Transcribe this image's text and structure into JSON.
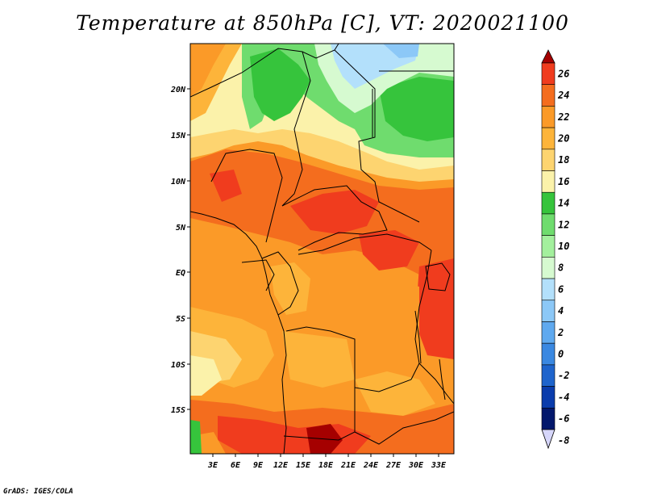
{
  "title": "Temperature at 850hPa [C], VT: 2020021100",
  "credit": "GrADS: IGES/COLA",
  "map": {
    "lat_labels": [
      "20N",
      "15N",
      "10N",
      "5N",
      "EQ",
      "5S",
      "10S",
      "15S"
    ],
    "lon_labels": [
      "3E",
      "6E",
      "9E",
      "12E",
      "15E",
      "18E",
      "21E",
      "24E",
      "27E",
      "30E",
      "33E"
    ]
  },
  "colorbar": {
    "labels": [
      "26",
      "24",
      "22",
      "20",
      "18",
      "16",
      "14",
      "12",
      "10",
      "8",
      "6",
      "4",
      "2",
      "0",
      "-2",
      "-4",
      "-6",
      "-8"
    ],
    "colors": [
      "#a50000",
      "#f03c1e",
      "#f46d1e",
      "#fb9a28",
      "#fdb43a",
      "#fdd470",
      "#fbf2aa",
      "#36c43c",
      "#6fdc6e",
      "#a3f09d",
      "#d6fad0",
      "#b3e0fb",
      "#8cc8f7",
      "#5fa9ef",
      "#3a88e1",
      "#1e64cc",
      "#0a3cac",
      "#03186c",
      "#d6d6fa"
    ]
  }
}
